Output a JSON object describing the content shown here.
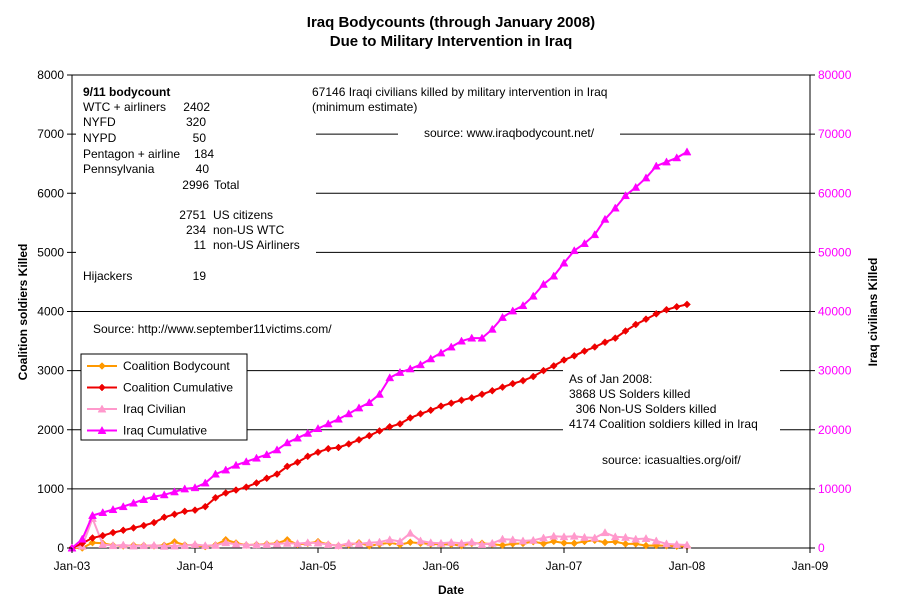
{
  "chart_data": {
    "type": "line",
    "title_line1": "Iraq Bodycounts (through January 2008)",
    "title_line2": "Due to Military  Intervention in Iraq",
    "xlabel": "Date",
    "ylabel_left": "Coalition soldiers Killed",
    "ylabel_right": "Iraq civilians Killed",
    "ylim_left": [
      0,
      8000
    ],
    "ylim_right": [
      0,
      80000
    ],
    "y_ticks_left": [
      "0",
      "1000",
      "2000",
      "3000",
      "4000",
      "5000",
      "6000",
      "7000",
      "8000"
    ],
    "y_ticks_right": [
      "0",
      "10000",
      "20000",
      "30000",
      "40000",
      "50000",
      "60000",
      "70000",
      "80000"
    ],
    "x_ticks": [
      "Jan-03",
      "Jan-04",
      "Jan-05",
      "Jan-06",
      "Jan-07",
      "Jan-08",
      "Jan-09"
    ],
    "x_range_months": [
      0,
      72
    ],
    "gridlines": "horizontal",
    "legend_position": "left-middle",
    "series": [
      {
        "name": "Coalition Bodycount",
        "axis": "left",
        "color": "#ff9900",
        "marker": "diamond",
        "x": [
          0,
          1,
          2,
          3,
          4,
          5,
          6,
          7,
          8,
          9,
          10,
          11,
          12,
          13,
          14,
          15,
          16,
          17,
          18,
          19,
          20,
          21,
          22,
          23,
          24,
          25,
          26,
          27,
          28,
          29,
          30,
          31,
          32,
          33,
          34,
          35,
          36,
          37,
          38,
          39,
          40,
          41,
          42,
          43,
          44,
          45,
          46,
          47,
          48,
          49,
          50,
          51,
          52,
          53,
          54,
          55,
          56,
          57,
          58,
          59,
          60
        ],
        "values": [
          0,
          0,
          90,
          80,
          45,
          34,
          46,
          42,
          35,
          45,
          104,
          50,
          48,
          24,
          52,
          140,
          85,
          49,
          57,
          68,
          82,
          138,
          60,
          78,
          107,
          60,
          38,
          52,
          88,
          35,
          64,
          90,
          55,
          97,
          80,
          68,
          62,
          60,
          40,
          77,
          80,
          62,
          46,
          70,
          78,
          107,
          74,
          112,
          85,
          80,
          110,
          130,
          95,
          105,
          70,
          70,
          40,
          42,
          38,
          30,
          25
        ]
      },
      {
        "name": "Coalition Cumulative",
        "axis": "left",
        "color": "#ee0000",
        "marker": "diamond",
        "x": [
          0,
          1,
          2,
          3,
          4,
          5,
          6,
          7,
          8,
          9,
          10,
          11,
          12,
          13,
          14,
          15,
          16,
          17,
          18,
          19,
          20,
          21,
          22,
          23,
          24,
          25,
          26,
          27,
          28,
          29,
          30,
          31,
          32,
          33,
          34,
          35,
          36,
          37,
          38,
          39,
          40,
          41,
          42,
          43,
          44,
          45,
          46,
          47,
          48,
          49,
          50,
          51,
          52,
          53,
          54,
          55,
          56,
          57,
          58,
          59,
          60
        ],
        "values": [
          0,
          80,
          170,
          210,
          260,
          300,
          340,
          380,
          430,
          520,
          570,
          620,
          640,
          700,
          850,
          930,
          980,
          1030,
          1100,
          1180,
          1250,
          1380,
          1450,
          1550,
          1620,
          1680,
          1700,
          1760,
          1830,
          1900,
          1980,
          2050,
          2100,
          2200,
          2270,
          2330,
          2400,
          2450,
          2500,
          2540,
          2600,
          2660,
          2720,
          2780,
          2830,
          2900,
          3000,
          3080,
          3180,
          3250,
          3330,
          3400,
          3480,
          3550,
          3670,
          3780,
          3870,
          3960,
          4030,
          4080,
          4120
        ]
      },
      {
        "name": "Iraq Civilian",
        "axis": "right",
        "color": "#ff99cc",
        "marker": "triangle",
        "x": [
          0,
          1,
          2,
          3,
          4,
          5,
          6,
          7,
          8,
          9,
          10,
          11,
          12,
          13,
          14,
          15,
          16,
          17,
          18,
          19,
          20,
          21,
          22,
          23,
          24,
          25,
          26,
          27,
          28,
          29,
          30,
          31,
          32,
          33,
          34,
          35,
          36,
          37,
          38,
          39,
          40,
          41,
          42,
          43,
          44,
          45,
          46,
          47,
          48,
          49,
          50,
          51,
          52,
          53,
          54,
          55,
          56,
          57,
          58,
          59,
          60
        ],
        "values": [
          0,
          300,
          5000,
          600,
          400,
          500,
          350,
          400,
          450,
          300,
          350,
          400,
          600,
          400,
          450,
          900,
          650,
          500,
          550,
          600,
          700,
          800,
          750,
          900,
          850,
          600,
          400,
          800,
          700,
          900,
          1000,
          1400,
          1100,
          2500,
          1200,
          900,
          800,
          950,
          800,
          1000,
          600,
          800,
          1500,
          1400,
          1200,
          1300,
          1700,
          2000,
          1900,
          2000,
          1800,
          1700,
          2600,
          1900,
          1800,
          1500,
          1600,
          1200,
          700,
          600,
          500
        ]
      },
      {
        "name": "Iraq Cumulative",
        "axis": "right",
        "color": "#ff00ff",
        "marker": "triangle",
        "x": [
          0,
          1,
          2,
          3,
          4,
          5,
          6,
          7,
          8,
          9,
          10,
          11,
          12,
          13,
          14,
          15,
          16,
          17,
          18,
          19,
          20,
          21,
          22,
          23,
          24,
          25,
          26,
          27,
          28,
          29,
          30,
          31,
          32,
          33,
          34,
          35,
          36,
          37,
          38,
          39,
          40,
          41,
          42,
          43,
          44,
          45,
          46,
          47,
          48,
          49,
          50,
          51,
          52,
          53,
          54,
          55,
          56,
          57,
          58,
          59,
          60
        ],
        "values": [
          0,
          1500,
          5500,
          6000,
          6500,
          7000,
          7600,
          8200,
          8700,
          9000,
          9500,
          10000,
          10200,
          11000,
          12500,
          13200,
          14000,
          14600,
          15200,
          15800,
          16600,
          17800,
          18600,
          19400,
          20200,
          21000,
          21800,
          22700,
          23700,
          24600,
          26000,
          28800,
          29700,
          30300,
          31000,
          32000,
          33000,
          34000,
          35000,
          35500,
          35500,
          37000,
          39000,
          40100,
          41000,
          42600,
          44600,
          46000,
          48200,
          50300,
          51500,
          53000,
          55600,
          57500,
          59600,
          61000,
          62600,
          64600,
          65300,
          66000,
          67000
        ]
      }
    ],
    "annotations": {
      "bodycount_title": "9/11 bodycount",
      "bodycount_lines": [
        {
          "label": "WTC + airliners",
          "value": "2402"
        },
        {
          "label": "NYFD",
          "value": "320"
        },
        {
          "label": "NYPD",
          "value": "50"
        },
        {
          "label": "Pentagon + airline",
          "value": "184"
        },
        {
          "label": "Pennsylvania",
          "value": "40"
        }
      ],
      "total_value": "2996",
      "total_label": "Total",
      "citizens": [
        {
          "value": "2751",
          "label": "US citizens"
        },
        {
          "value": "234",
          "label": "non-US WTC"
        },
        {
          "value": "11",
          "label": "non-US Airliners"
        }
      ],
      "hijackers_label": "Hijackers",
      "hijackers_value": "19",
      "source_911": "Source: http://www.september11victims.com/",
      "iraqi_line1": "67146 Iraqi civilians killed by military intervention in Iraq",
      "iraqi_line2": "(minimum estimate)",
      "source_ibc": "source:  www.iraqbodycount.net/",
      "asof_lines": [
        "As of Jan 2008:",
        "3868 US Solders killed",
        "  306 Non-US Solders killed",
        "4174 Coalition soldiers killed in Iraq"
      ],
      "source_icas": "source:  icasualties.org/oif/"
    }
  }
}
